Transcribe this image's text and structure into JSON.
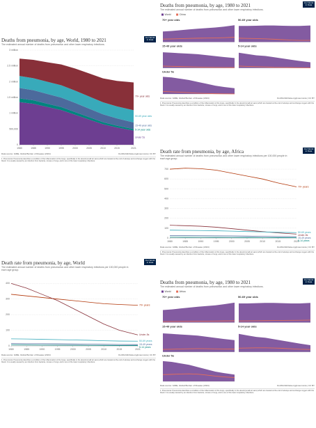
{
  "chart_data": [
    {
      "type": "area",
      "stacked": true,
      "logo": "Our World in Data",
      "title": "Deaths from pneumonia, by age, World, 1980 to 2021",
      "subtitle": "The estimated annual number of deaths from pneumonia¹ and other lower respiratory infections.",
      "x": [
        1980,
        1985,
        1990,
        1995,
        2000,
        2005,
        2010,
        2015,
        2021
      ],
      "xlim": [
        1980,
        2021
      ],
      "xticks": [
        1980,
        1985,
        1990,
        1995,
        2000,
        2005,
        2010,
        2015,
        2021
      ],
      "ylim": [
        0,
        3000000
      ],
      "yticks": [
        0,
        {
          "value": 500000,
          "label": "500,000"
        },
        {
          "value": 1000000,
          "label": "1 million"
        },
        {
          "value": 1500000,
          "label": "1.5 million"
        },
        {
          "value": 2000000,
          "label": "2 million"
        },
        {
          "value": 2500000,
          "label": "2.5 million"
        },
        {
          "value": 3000000,
          "label": "3 million"
        }
      ],
      "grid": true,
      "series": [
        {
          "name": "Under 5s",
          "color": "#6d3e91",
          "values": [
            1350000,
            1300000,
            1200000,
            1100000,
            950000,
            800000,
            650000,
            550000,
            450000
          ]
        },
        {
          "name": "5-14 year olds",
          "color": "#00847e",
          "values": [
            120000,
            110000,
            100000,
            95000,
            85000,
            75000,
            65000,
            55000,
            45000
          ]
        },
        {
          "name": "15-49 year olds",
          "color": "#4c6a9c",
          "values": [
            330000,
            320000,
            310000,
            300000,
            290000,
            270000,
            250000,
            230000,
            210000
          ]
        },
        {
          "name": "50-69 year olds",
          "color": "#38aaba",
          "values": [
            380000,
            380000,
            385000,
            390000,
            390000,
            385000,
            380000,
            380000,
            390000
          ]
        },
        {
          "name": "70+ year olds",
          "color": "#883039",
          "values": [
            550000,
            580000,
            620000,
            660000,
            700000,
            730000,
            760000,
            810000,
            880000
          ]
        }
      ],
      "source": "Data source: IHME, Global Burden of Disease (2024)",
      "credit": "OurWorldInData.org/pneumonia | CC BY",
      "note": "1. Pneumonia: Pneumonia describes a condition of the inflammation of the lungs, specifically in the alveoli (small air sacs) which are located at the end of airways and exchange oxygen with the blood. It is usually caused by an infection from bacteria, viruses or fungi, and is one of the lower respiratory infections."
    },
    {
      "type": "facets",
      "logo": "Our World in Data",
      "title": "Deaths from pneumonia, by age, 1980 to 2021",
      "subtitle": "The estimated annual number of deaths from pneumonia¹ and other lower respiratory infections.",
      "x": [
        1980,
        1985,
        1990,
        1995,
        2000,
        2005,
        2010,
        2015,
        2021
      ],
      "xlim": [
        1980,
        2021
      ],
      "legend": [
        {
          "name": "World",
          "color": "#6d3e91"
        },
        {
          "name": "China",
          "color": "#e56e5a"
        }
      ],
      "facets": [
        {
          "title": "70+ year olds",
          "ylim": [
            0,
            1000000
          ],
          "series": [
            {
              "values": [
                550000,
                580000,
                620000,
                660000,
                700000,
                730000,
                760000,
                810000,
                880000
              ]
            },
            {
              "values": [
                150000,
                160000,
                175000,
                190000,
                200000,
                205000,
                210000,
                225000,
                250000
              ]
            }
          ]
        },
        {
          "title": "50-69 year olds",
          "ylim": [
            0,
            450000
          ],
          "series": [
            {
              "values": [
                380000,
                380000,
                385000,
                390000,
                390000,
                385000,
                380000,
                380000,
                390000
              ]
            },
            {
              "values": [
                90000,
                85000,
                80000,
                75000,
                65000,
                55000,
                45000,
                40000,
                40000
              ]
            }
          ]
        },
        {
          "title": "15-49 year olds",
          "ylim": [
            0,
            400000
          ],
          "series": [
            {
              "values": [
                330000,
                320000,
                310000,
                300000,
                290000,
                270000,
                250000,
                230000,
                210000
              ]
            },
            {
              "values": [
                40000,
                35000,
                30000,
                25000,
                20000,
                15000,
                12000,
                10000,
                8000
              ]
            }
          ]
        },
        {
          "title": "5-14 year olds",
          "ylim": [
            0,
            150000
          ],
          "series": [
            {
              "values": [
                120000,
                110000,
                100000,
                95000,
                85000,
                75000,
                65000,
                55000,
                45000
              ]
            },
            {
              "values": [
                15000,
                12000,
                10000,
                8000,
                5000,
                4000,
                3000,
                2000,
                1500
              ]
            }
          ]
        },
        {
          "title": "Under 5s",
          "ylim": [
            0,
            1500000
          ],
          "series": [
            {
              "values": [
                1350000,
                1300000,
                1200000,
                1100000,
                950000,
                800000,
                650000,
                550000,
                450000
              ]
            },
            {
              "values": [
                200000,
                170000,
                140000,
                100000,
                60000,
                35000,
                20000,
                10000,
                6000
              ]
            }
          ]
        }
      ],
      "source": "Data source: IHME, Global Burden of Disease (2024)",
      "credit": "OurWorldInData.org/pneumonia | CC BY",
      "note": "1. Pneumonia: Pneumonia describes a condition of the inflammation of the lungs, specifically in the alveoli (small air sacs) which are located at the end of airways and exchange oxygen with the blood. It is usually caused by an infection from bacteria, viruses or fungi, and is one of the lower respiratory infections."
    },
    {
      "type": "line",
      "logo": "Our World in Data",
      "title": "Death rate from pneumonia, by age, Africa",
      "subtitle": "The estimated annual number of deaths from pneumonia¹ and other lower respiratory infections per 100,000 people in each age group.",
      "x": [
        1980,
        1985,
        1990,
        1995,
        2000,
        2005,
        2010,
        2015,
        2021
      ],
      "xlim": [
        1980,
        2021
      ],
      "xticks": [
        1980,
        1985,
        1990,
        1995,
        2000,
        2005,
        2010,
        2015,
        2021
      ],
      "ylim": [
        0,
        750
      ],
      "yticks": [
        0,
        100,
        200,
        300,
        400,
        500,
        600,
        700
      ],
      "grid": true,
      "series": [
        {
          "name": "70+ years",
          "color": "#b13507",
          "values": [
            700,
            710,
            705,
            690,
            660,
            630,
            600,
            560,
            520
          ]
        },
        {
          "name": "Under-5s",
          "color": "#883039",
          "values": [
            130,
            125,
            120,
            110,
            95,
            80,
            65,
            52,
            40
          ]
        },
        {
          "name": "50-69 years",
          "color": "#38aaba",
          "values": [
            80,
            78,
            76,
            74,
            70,
            66,
            62,
            58,
            55
          ]
        },
        {
          "name": "15-49 years",
          "color": "#4c6a9c",
          "values": [
            25,
            24,
            23,
            22,
            21,
            19,
            17,
            15,
            14
          ]
        },
        {
          "name": "5-14 years",
          "color": "#00847e",
          "values": [
            8,
            7.5,
            7,
            6.5,
            6,
            5,
            4.5,
            4,
            3.5
          ]
        }
      ],
      "source": "Data source: IHME, Global Burden of Disease (2024)",
      "credit": "OurWorldInData.org/pneumonia | CC BY",
      "note": "1. Pneumonia: Pneumonia describes a condition of the inflammation of the lungs, specifically in the alveoli (small air sacs) which are located at the end of airways and exchange oxygen with the blood. It is usually caused by an infection from bacteria, viruses or fungi, and is one of the lower respiratory infections."
    },
    {
      "type": "line",
      "logo": "Our World in Data",
      "title": "Death rate from pneumonia, by age, World",
      "subtitle": "The estimated annual number of deaths from pneumonia¹ and other lower respiratory infections per 100,000 people in each age group.",
      "x": [
        1980,
        1985,
        1990,
        1995,
        2000,
        2005,
        2010,
        2015,
        2021
      ],
      "xlim": [
        1980,
        2021
      ],
      "xticks": [
        1980,
        1985,
        1990,
        1995,
        2000,
        2005,
        2010,
        2015,
        2021
      ],
      "ylim": [
        0,
        450
      ],
      "yticks": [
        0,
        100,
        200,
        300,
        400
      ],
      "grid": true,
      "series": [
        {
          "name": "70+ years",
          "color": "#b13507",
          "values": [
            330,
            320,
            310,
            300,
            290,
            280,
            270,
            265,
            260
          ]
        },
        {
          "name": "Under-5s",
          "color": "#883039",
          "values": [
            400,
            370,
            330,
            290,
            240,
            190,
            140,
            100,
            70
          ]
        },
        {
          "name": "50-69 years",
          "color": "#38aaba",
          "values": [
            45,
            44,
            42,
            40,
            38,
            36,
            33,
            31,
            30
          ]
        },
        {
          "name": "15-49 years",
          "color": "#4c6a9c",
          "values": [
            15,
            14,
            14,
            13,
            12,
            11,
            10,
            9,
            8
          ]
        },
        {
          "name": "5-14 years",
          "color": "#00847e",
          "values": [
            6,
            5.5,
            5,
            4.5,
            4,
            3.5,
            3,
            2.5,
            2
          ]
        }
      ],
      "source": "Data source: IHME, Global Burden of Disease (2024)",
      "credit": "OurWorldInData.org/pneumonia | CC BY",
      "note": "1. Pneumonia: Pneumonia describes a condition of the inflammation of the lungs, specifically in the alveoli (small air sacs) which are located at the end of airways and exchange oxygen with the blood. It is usually caused by an infection from bacteria, viruses or fungi, and is one of the lower respiratory infections."
    },
    {
      "type": "facets",
      "logo": "Our World in Data",
      "title": "Deaths from pneumonia, by age, 1980 to 2021",
      "subtitle": "The estimated annual number of deaths from pneumonia¹ and other lower respiratory infections.",
      "x": [
        1980,
        1985,
        1990,
        1995,
        2000,
        2005,
        2010,
        2015,
        2021
      ],
      "xlim": [
        1980,
        2021
      ],
      "legend": [
        {
          "name": "World",
          "color": "#6d3e91"
        },
        {
          "name": "Africa",
          "color": "#e56e5a"
        }
      ],
      "facets": [
        {
          "title": "70+ year olds",
          "ylim": [
            0,
            1000000
          ],
          "series": [
            {
              "values": [
                550000,
                580000,
                620000,
                660000,
                700000,
                730000,
                760000,
                810000,
                880000
              ]
            },
            {
              "values": [
                40000,
                44000,
                48000,
                52000,
                56000,
                60000,
                64000,
                68000,
                75000
              ]
            }
          ]
        },
        {
          "title": "50-69 year olds",
          "ylim": [
            0,
            450000
          ],
          "series": [
            {
              "values": [
                380000,
                380000,
                385000,
                390000,
                390000,
                385000,
                380000,
                380000,
                390000
              ]
            },
            {
              "values": [
                30000,
                32000,
                34000,
                36000,
                38000,
                40000,
                42000,
                44000,
                47000
              ]
            }
          ]
        },
        {
          "title": "15-49 year olds",
          "ylim": [
            0,
            400000
          ],
          "series": [
            {
              "values": [
                330000,
                320000,
                310000,
                300000,
                290000,
                270000,
                250000,
                230000,
                210000
              ]
            },
            {
              "values": [
                45000,
                48000,
                52000,
                56000,
                58000,
                57000,
                54000,
                52000,
                50000
              ]
            }
          ]
        },
        {
          "title": "5-14 year olds",
          "ylim": [
            0,
            150000
          ],
          "series": [
            {
              "values": [
                120000,
                110000,
                100000,
                95000,
                85000,
                75000,
                65000,
                55000,
                45000
              ]
            },
            {
              "values": [
                25000,
                26000,
                27000,
                27000,
                26000,
                24000,
                21000,
                18000,
                16000
              ]
            }
          ]
        },
        {
          "title": "Under 5s",
          "ylim": [
            0,
            1500000
          ],
          "series": [
            {
              "values": [
                1350000,
                1300000,
                1200000,
                1100000,
                950000,
                800000,
                650000,
                550000,
                450000
              ]
            },
            {
              "values": [
                450000,
                470000,
                490000,
                500000,
                480000,
                420000,
                350000,
                300000,
                250000
              ]
            }
          ]
        }
      ],
      "source": "Data source: IHME, Global Burden of Disease (2024)",
      "credit": "OurWorldInData.org/pneumonia | CC BY",
      "note": "1. Pneumonia: Pneumonia describes a condition of the inflammation of the lungs, specifically in the alveoli (small air sacs) which are located at the end of airways and exchange oxygen with the blood. It is usually caused by an infection from bacteria, viruses or fungi, and is one of the lower respiratory infections."
    }
  ]
}
